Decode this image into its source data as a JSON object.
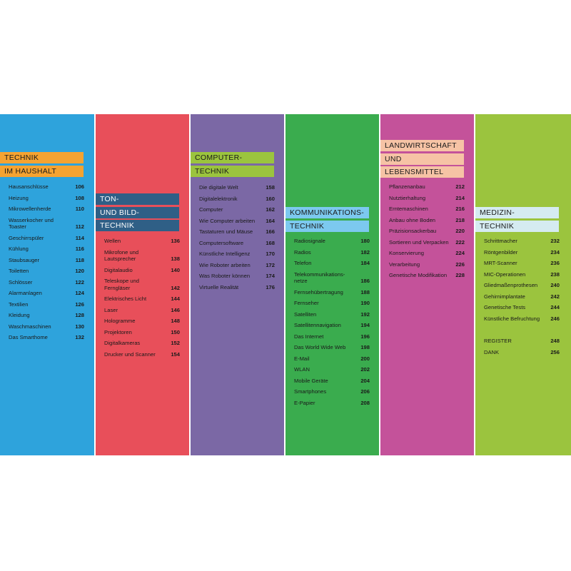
{
  "columns": [
    {
      "title": [
        "TECHNIK",
        "IM HAUSHALT"
      ],
      "entries": [
        {
          "title": "Hausanschlüsse",
          "page": "106"
        },
        {
          "title": "Heizung",
          "page": "108"
        },
        {
          "title": "Mikrowellenherde",
          "page": "110"
        },
        {
          "title": "Wasserkocher und Toaster",
          "page": "112"
        },
        {
          "title": "Geschirrspüler",
          "page": "114"
        },
        {
          "title": "Kühlung",
          "page": "116"
        },
        {
          "title": "Staubsauger",
          "page": "118"
        },
        {
          "title": "Toiletten",
          "page": "120"
        },
        {
          "title": "Schlösser",
          "page": "122"
        },
        {
          "title": "Alarmanlagen",
          "page": "124"
        },
        {
          "title": "Textilien",
          "page": "126"
        },
        {
          "title": "Kleidung",
          "page": "128"
        },
        {
          "title": "Waschmaschinen",
          "page": "130"
        },
        {
          "title": "Das Smarthome",
          "page": "132"
        }
      ]
    },
    {
      "title": [
        "TON-",
        "UND BILD-",
        "TECHNIK"
      ],
      "entries": [
        {
          "title": "Wellen",
          "page": "136"
        },
        {
          "title": "Mikrofone und Lautsprecher",
          "page": "138"
        },
        {
          "title": "Digitalaudio",
          "page": "140"
        },
        {
          "title": "Teleskope und Ferngläser",
          "page": "142"
        },
        {
          "title": "Elektrisches Licht",
          "page": "144"
        },
        {
          "title": "Laser",
          "page": "146"
        },
        {
          "title": "Hologramme",
          "page": "148"
        },
        {
          "title": "Projektoren",
          "page": "150"
        },
        {
          "title": "Digitalkameras",
          "page": "152"
        },
        {
          "title": "Drucker und Scanner",
          "page": "154"
        }
      ]
    },
    {
      "title": [
        "COMPUTER-",
        "TECHNIK"
      ],
      "entries": [
        {
          "title": "Die digitale Welt",
          "page": "158"
        },
        {
          "title": "Digitalelektronik",
          "page": "160"
        },
        {
          "title": "Computer",
          "page": "162"
        },
        {
          "title": "Wie Computer arbeiten",
          "page": "164"
        },
        {
          "title": "Tastaturen und Mäuse",
          "page": "166"
        },
        {
          "title": "Computersoftware",
          "page": "168"
        },
        {
          "title": "Künstliche Intelligenz",
          "page": "170"
        },
        {
          "title": "Wie Roboter arbeiten",
          "page": "172"
        },
        {
          "title": "Was Roboter können",
          "page": "174"
        },
        {
          "title": "Virtuelle Realität",
          "page": "176"
        }
      ]
    },
    {
      "title": [
        "KOMMUNIKATIONS-",
        "TECHNIK"
      ],
      "entries": [
        {
          "title": "Radiosignale",
          "page": "180"
        },
        {
          "title": "Radios",
          "page": "182"
        },
        {
          "title": "Telefon",
          "page": "184"
        },
        {
          "title": "Telekommunikations-netze",
          "page": "186"
        },
        {
          "title": "Fernsehübertragung",
          "page": "188"
        },
        {
          "title": "Fernseher",
          "page": "190"
        },
        {
          "title": "Satelliten",
          "page": "192"
        },
        {
          "title": "Satellitennavigation",
          "page": "194"
        },
        {
          "title": "Das Internet",
          "page": "196"
        },
        {
          "title": "Das World Wide Web",
          "page": "198"
        },
        {
          "title": "E-Mail",
          "page": "200"
        },
        {
          "title": "WLAN",
          "page": "202"
        },
        {
          "title": "Mobile Geräte",
          "page": "204"
        },
        {
          "title": "Smartphones",
          "page": "206"
        },
        {
          "title": "E-Papier",
          "page": "208"
        }
      ]
    },
    {
      "title": [
        "LANDWIRTSCHAFT",
        "UND",
        "LEBENSMITTEL"
      ],
      "entries": [
        {
          "title": "Pflanzenanbau",
          "page": "212"
        },
        {
          "title": "Nutztierhaltung",
          "page": "214"
        },
        {
          "title": "Erntemaschinen",
          "page": "216"
        },
        {
          "title": "Anbau ohne Boden",
          "page": "218"
        },
        {
          "title": "Präzisionsackerbau",
          "page": "220"
        },
        {
          "title": "Sortieren und Verpacken",
          "page": "222"
        },
        {
          "title": "Konservierung",
          "page": "224"
        },
        {
          "title": "Verarbeitung",
          "page": "226"
        },
        {
          "title": "Genetische Modifikation",
          "page": "228"
        }
      ]
    },
    {
      "title": [
        "MEDIZIN-",
        "TECHNIK"
      ],
      "entries": [
        {
          "title": "Schrittmacher",
          "page": "232"
        },
        {
          "title": "Röntgenbilder",
          "page": "234"
        },
        {
          "title": "MRT-Scanner",
          "page": "236"
        },
        {
          "title": "MIC-Operationen",
          "page": "238"
        },
        {
          "title": "Gliedmaßenprothesen",
          "page": "240"
        },
        {
          "title": "Gehirnimplantate",
          "page": "242"
        },
        {
          "title": "Genetische Tests",
          "page": "244"
        },
        {
          "title": "Künstliche Befruchtung",
          "page": "246"
        }
      ],
      "extras": [
        {
          "title": "REGISTER",
          "page": "248"
        },
        {
          "title": "DANK",
          "page": "256"
        }
      ]
    }
  ]
}
